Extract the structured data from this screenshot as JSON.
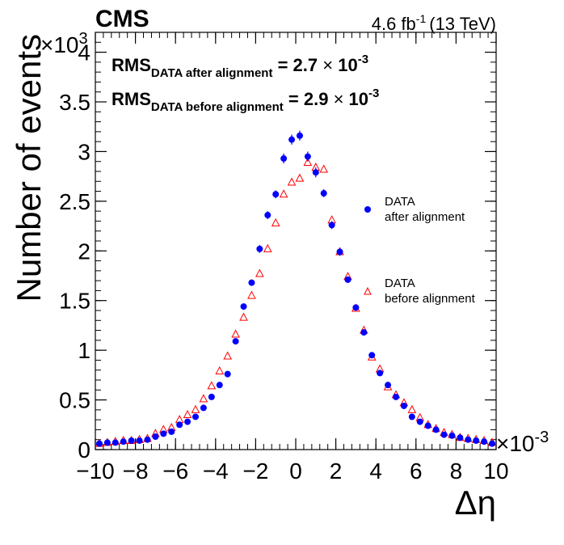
{
  "chart_data": {
    "type": "scatter",
    "experiment": "CMS",
    "luminosity": {
      "value": "4.6 fb",
      "exp": "-1",
      "energy": "(13 TeV)"
    },
    "xlabel": "Δη",
    "ylabel": "Number of events",
    "x_exponent": "×10",
    "x_exponent_power": "-3",
    "y_exponent": "×10",
    "y_exponent_power": "3",
    "xlim": [
      -10,
      10
    ],
    "ylim": [
      0,
      4.2
    ],
    "x_ticks": [
      -10,
      -8,
      -6,
      -4,
      -2,
      0,
      2,
      4,
      6,
      8,
      10
    ],
    "x_tick_labels": [
      "−10",
      "−8",
      "−6",
      "−4",
      "−2",
      "0",
      "2",
      "4",
      "6",
      "8",
      "10"
    ],
    "y_ticks": [
      0,
      0.5,
      1,
      1.5,
      2,
      2.5,
      3,
      3.5,
      4
    ],
    "y_tick_labels": [
      "0",
      "0.5",
      "1",
      "1.5",
      "2",
      "2.5",
      "3",
      "3.5",
      "4"
    ],
    "annotations": [
      {
        "prefix": "RMS",
        "subscript": "DATA after alignment",
        "value": " = 2.7 ",
        "times": "×",
        "mantissa": " 10",
        "exp": "-3"
      },
      {
        "prefix": "RMS",
        "subscript": "DATA before alignment",
        "value": " = 2.9 ",
        "times": "×",
        "mantissa": " 10",
        "exp": "-3"
      }
    ],
    "legend": [
      {
        "line1": "DATA",
        "line2": "after alignment",
        "marker": "circle",
        "color": "#0000ff"
      },
      {
        "line1": "DATA",
        "line2": "before alignment",
        "marker": "triangle-open",
        "color": "#ff0000"
      }
    ],
    "series": [
      {
        "name": "DATA after alignment",
        "marker": "circle",
        "color": "#0000ff",
        "x": [
          -9.8,
          -9.4,
          -9.0,
          -8.6,
          -8.2,
          -7.8,
          -7.4,
          -7.0,
          -6.6,
          -6.2,
          -5.8,
          -5.4,
          -5.0,
          -4.6,
          -4.2,
          -3.8,
          -3.4,
          -3.0,
          -2.6,
          -2.2,
          -1.8,
          -1.4,
          -1.0,
          -0.6,
          -0.2,
          0.2,
          0.6,
          1.0,
          1.4,
          1.8,
          2.2,
          2.6,
          3.0,
          3.4,
          3.8,
          4.2,
          4.6,
          5.0,
          5.4,
          5.8,
          6.2,
          6.6,
          7.0,
          7.4,
          7.8,
          8.2,
          8.6,
          9.0,
          9.4,
          9.8
        ],
        "y": [
          0.06,
          0.07,
          0.07,
          0.08,
          0.09,
          0.09,
          0.1,
          0.13,
          0.16,
          0.18,
          0.25,
          0.28,
          0.33,
          0.42,
          0.53,
          0.65,
          0.76,
          1.09,
          1.44,
          1.68,
          2.02,
          2.36,
          2.57,
          2.93,
          3.12,
          3.16,
          2.95,
          2.79,
          2.58,
          2.26,
          1.99,
          1.71,
          1.43,
          1.18,
          0.95,
          0.77,
          0.65,
          0.53,
          0.44,
          0.33,
          0.28,
          0.24,
          0.2,
          0.15,
          0.14,
          0.12,
          0.1,
          0.09,
          0.08,
          0.06
        ],
        "yerr": [
          0.02,
          0.02,
          0.02,
          0.02,
          0.02,
          0.02,
          0.02,
          0.02,
          0.02,
          0.02,
          0.02,
          0.02,
          0.02,
          0.02,
          0.02,
          0.02,
          0.03,
          0.03,
          0.03,
          0.03,
          0.04,
          0.04,
          0.04,
          0.05,
          0.05,
          0.05,
          0.05,
          0.05,
          0.04,
          0.04,
          0.04,
          0.03,
          0.03,
          0.03,
          0.03,
          0.02,
          0.02,
          0.02,
          0.02,
          0.02,
          0.02,
          0.02,
          0.02,
          0.02,
          0.02,
          0.02,
          0.02,
          0.02,
          0.02,
          0.02
        ]
      },
      {
        "name": "DATA before alignment",
        "marker": "triangle-open",
        "color": "#ff0000",
        "x": [
          -9.8,
          -9.4,
          -9.0,
          -8.6,
          -8.2,
          -7.8,
          -7.4,
          -7.0,
          -6.6,
          -6.2,
          -5.8,
          -5.4,
          -5.0,
          -4.6,
          -4.2,
          -3.8,
          -3.4,
          -3.0,
          -2.6,
          -2.2,
          -1.8,
          -1.4,
          -1.0,
          -0.6,
          -0.2,
          0.2,
          0.6,
          1.0,
          1.4,
          1.8,
          2.2,
          2.6,
          3.0,
          3.4,
          3.8,
          4.2,
          4.6,
          5.0,
          5.4,
          5.8,
          6.2,
          6.6,
          7.0,
          7.4,
          7.8,
          8.2,
          8.6,
          9.0,
          9.4,
          9.8
        ],
        "y": [
          0.06,
          0.07,
          0.08,
          0.09,
          0.09,
          0.1,
          0.11,
          0.16,
          0.2,
          0.22,
          0.3,
          0.35,
          0.4,
          0.51,
          0.64,
          0.79,
          0.94,
          1.16,
          1.33,
          1.55,
          1.77,
          2.02,
          2.28,
          2.57,
          2.69,
          2.73,
          2.89,
          2.84,
          2.82,
          2.31,
          1.99,
          1.74,
          1.42,
          1.2,
          0.93,
          0.81,
          0.63,
          0.55,
          0.47,
          0.4,
          0.32,
          0.25,
          0.21,
          0.17,
          0.15,
          0.12,
          0.11,
          0.1,
          0.09,
          0.07
        ]
      }
    ]
  }
}
